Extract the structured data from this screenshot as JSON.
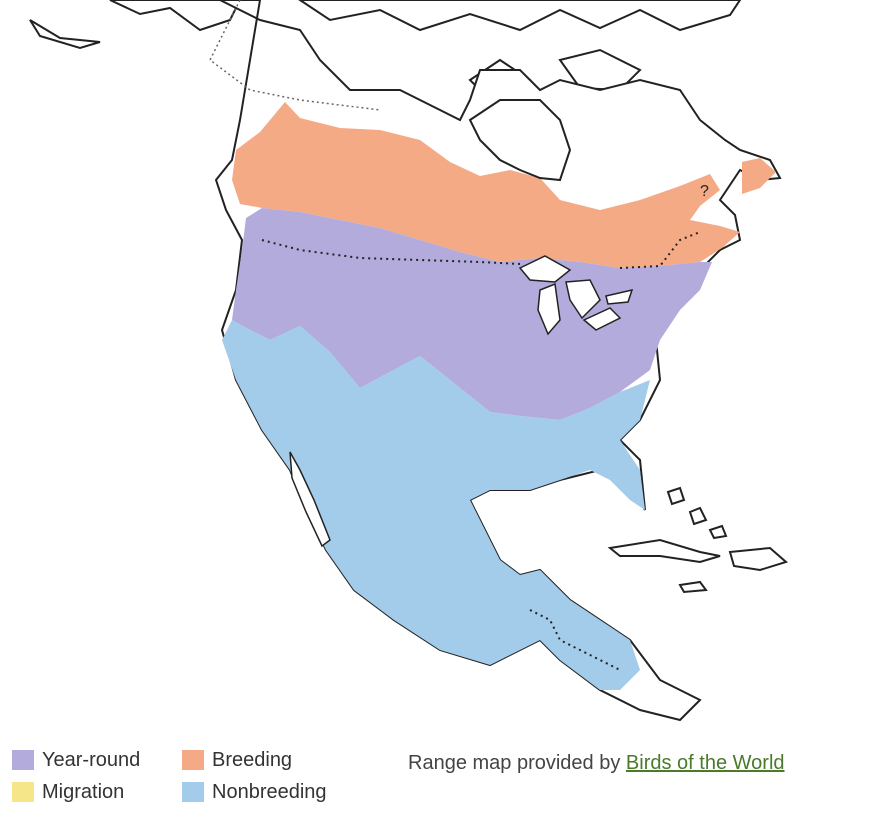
{
  "colors": {
    "year_round": "#b2abdb",
    "breeding": "#f5aa86",
    "migration": "#f5e68a",
    "nonbreeding": "#a2ccea",
    "land_outline": "#222222",
    "water": "#ffffff"
  },
  "legend": {
    "items": [
      {
        "key": "year_round",
        "label": "Year-round"
      },
      {
        "key": "migration",
        "label": "Migration"
      },
      {
        "key": "breeding",
        "label": "Breeding"
      },
      {
        "key": "nonbreeding",
        "label": "Nonbreeding"
      }
    ]
  },
  "credit": {
    "prefix": "Range map provided by ",
    "link_text": "Birds of the World"
  }
}
